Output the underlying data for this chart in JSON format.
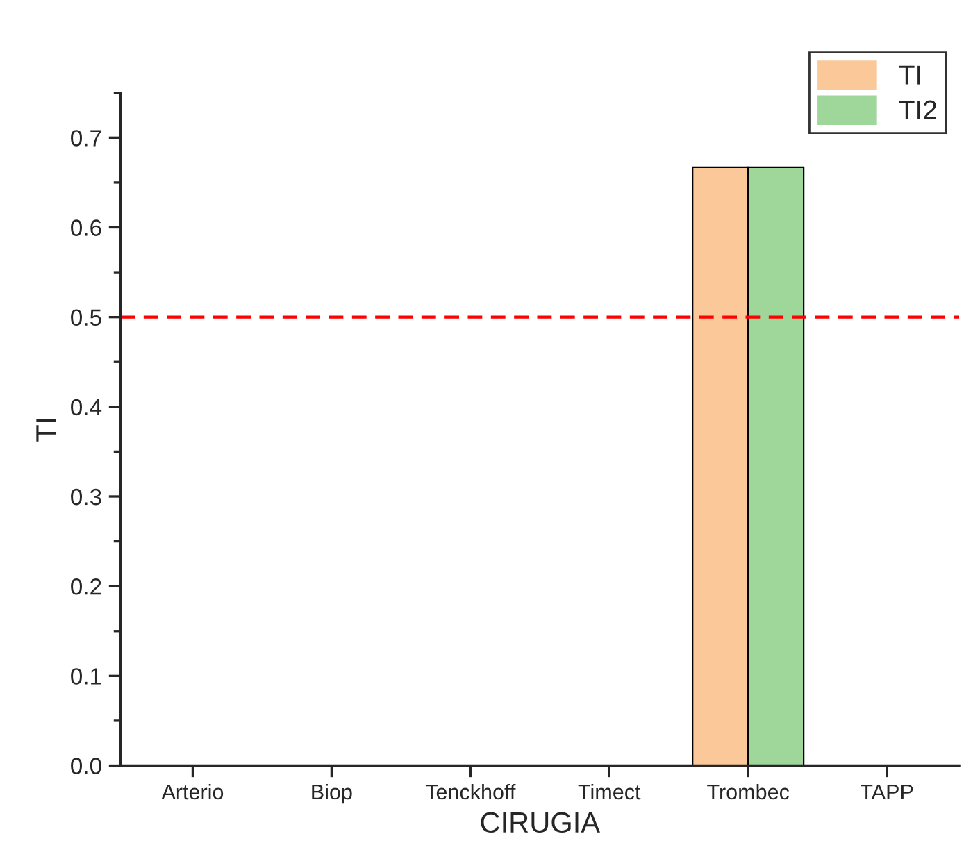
{
  "chart_data": {
    "type": "bar",
    "xlabel": "CIRUGIA",
    "ylabel": "TI",
    "categories": [
      "Arterio",
      "Biop",
      "Tenckhoff",
      "Timect",
      "Trombec",
      "TAPP"
    ],
    "series": [
      {
        "name": "TI",
        "color": "#fbc89a",
        "values": [
          0,
          0,
          0,
          0,
          0.667,
          0
        ]
      },
      {
        "name": "TI2",
        "color": "#9fd79b",
        "values": [
          0,
          0,
          0,
          0,
          0.667,
          0
        ]
      }
    ],
    "ylim": [
      0,
      0.75
    ],
    "yticks": [
      {
        "value": 0,
        "label": "0.0"
      },
      0.1,
      0.2,
      0.3,
      0.4,
      0.5,
      0.6,
      0.7
    ],
    "ref_lines": [
      {
        "axis": "y",
        "value": 0.5,
        "color": "#ff0000",
        "line_style": "dashed"
      }
    ],
    "grid": false,
    "legend": "top right"
  }
}
